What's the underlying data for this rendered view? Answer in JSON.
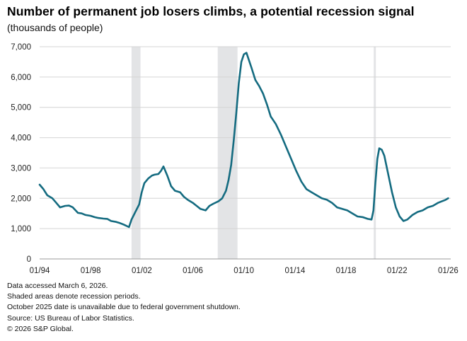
{
  "chart_data": {
    "type": "line",
    "title": "Number of permanent job losers climbs, a potential recession signal",
    "subtitle": "(thousands of people)",
    "xlabel": "",
    "ylabel": "",
    "xlim": [
      1994.0,
      2026.2
    ],
    "ylim": [
      0,
      7000
    ],
    "y_ticks": [
      0,
      1000,
      2000,
      3000,
      4000,
      5000,
      6000,
      7000
    ],
    "y_tick_labels": [
      "0",
      "1,000",
      "2,000",
      "3,000",
      "4,000",
      "5,000",
      "6,000",
      "7,000"
    ],
    "x_ticks": [
      1994,
      1998,
      2002,
      2006,
      2010,
      2014,
      2018,
      2022,
      2026
    ],
    "x_tick_labels": [
      "01/94",
      "01/98",
      "01/02",
      "01/06",
      "01/10",
      "01/14",
      "01/18",
      "01/22",
      "01/26"
    ],
    "grid": "horizontal",
    "recessions": [
      [
        2001.2,
        2001.9
      ],
      [
        2007.95,
        2009.5
      ],
      [
        2020.17,
        2020.33
      ]
    ],
    "series": [
      {
        "name": "Permanent job losers",
        "color": "#146b80",
        "x": [
          1994.0,
          1994.3,
          1994.6,
          1995.0,
          1995.3,
          1995.6,
          1996.0,
          1996.3,
          1996.6,
          1997.0,
          1997.3,
          1997.6,
          1998.0,
          1998.3,
          1998.6,
          1999.0,
          1999.3,
          1999.6,
          2000.0,
          2000.3,
          2000.6,
          2001.0,
          2001.2,
          2001.5,
          2001.8,
          2002.0,
          2002.2,
          2002.5,
          2002.8,
          2003.0,
          2003.3,
          2003.5,
          2003.7,
          2004.0,
          2004.3,
          2004.6,
          2005.0,
          2005.3,
          2005.6,
          2006.0,
          2006.3,
          2006.6,
          2007.0,
          2007.3,
          2007.6,
          2008.0,
          2008.3,
          2008.6,
          2008.8,
          2009.0,
          2009.2,
          2009.4,
          2009.6,
          2009.8,
          2010.0,
          2010.2,
          2010.4,
          2010.6,
          2010.9,
          2011.2,
          2011.5,
          2011.8,
          2012.1,
          2012.5,
          2012.9,
          2013.3,
          2013.7,
          2014.1,
          2014.5,
          2014.9,
          2015.3,
          2015.7,
          2016.1,
          2016.5,
          2016.9,
          2017.3,
          2017.7,
          2018.1,
          2018.5,
          2018.9,
          2019.3,
          2019.7,
          2020.0,
          2020.15,
          2020.3,
          2020.45,
          2020.6,
          2020.8,
          2021.0,
          2021.3,
          2021.6,
          2021.9,
          2022.2,
          2022.5,
          2022.8,
          2023.2,
          2023.6,
          2024.0,
          2024.4,
          2024.8,
          2025.2,
          2025.5,
          2025.8,
          2026.0
        ],
        "values": [
          2450,
          2300,
          2100,
          2000,
          1850,
          1700,
          1750,
          1760,
          1700,
          1520,
          1500,
          1450,
          1420,
          1380,
          1350,
          1330,
          1320,
          1250,
          1220,
          1180,
          1130,
          1050,
          1300,
          1550,
          1800,
          2200,
          2500,
          2650,
          2750,
          2780,
          2800,
          2900,
          3050,
          2750,
          2400,
          2250,
          2200,
          2050,
          1950,
          1850,
          1750,
          1650,
          1600,
          1750,
          1820,
          1900,
          2000,
          2250,
          2600,
          3100,
          3900,
          4800,
          5800,
          6500,
          6750,
          6800,
          6550,
          6300,
          5900,
          5700,
          5450,
          5100,
          4700,
          4450,
          4100,
          3700,
          3300,
          2900,
          2550,
          2300,
          2200,
          2100,
          2000,
          1950,
          1850,
          1700,
          1650,
          1600,
          1500,
          1400,
          1380,
          1320,
          1300,
          1600,
          2500,
          3300,
          3650,
          3600,
          3400,
          2800,
          2200,
          1700,
          1400,
          1250,
          1300,
          1450,
          1550,
          1600,
          1700,
          1750,
          1850,
          1900,
          1950,
          2000
        ]
      }
    ]
  },
  "footnotes": [
    "Data accessed March 6, 2026.",
    "Shaded areas denote recession periods.",
    "October 2025 date is unavailable due to federal government shutdown.",
    "Source: US Bureau of Labor Statistics.",
    "© 2026 S&P Global."
  ]
}
